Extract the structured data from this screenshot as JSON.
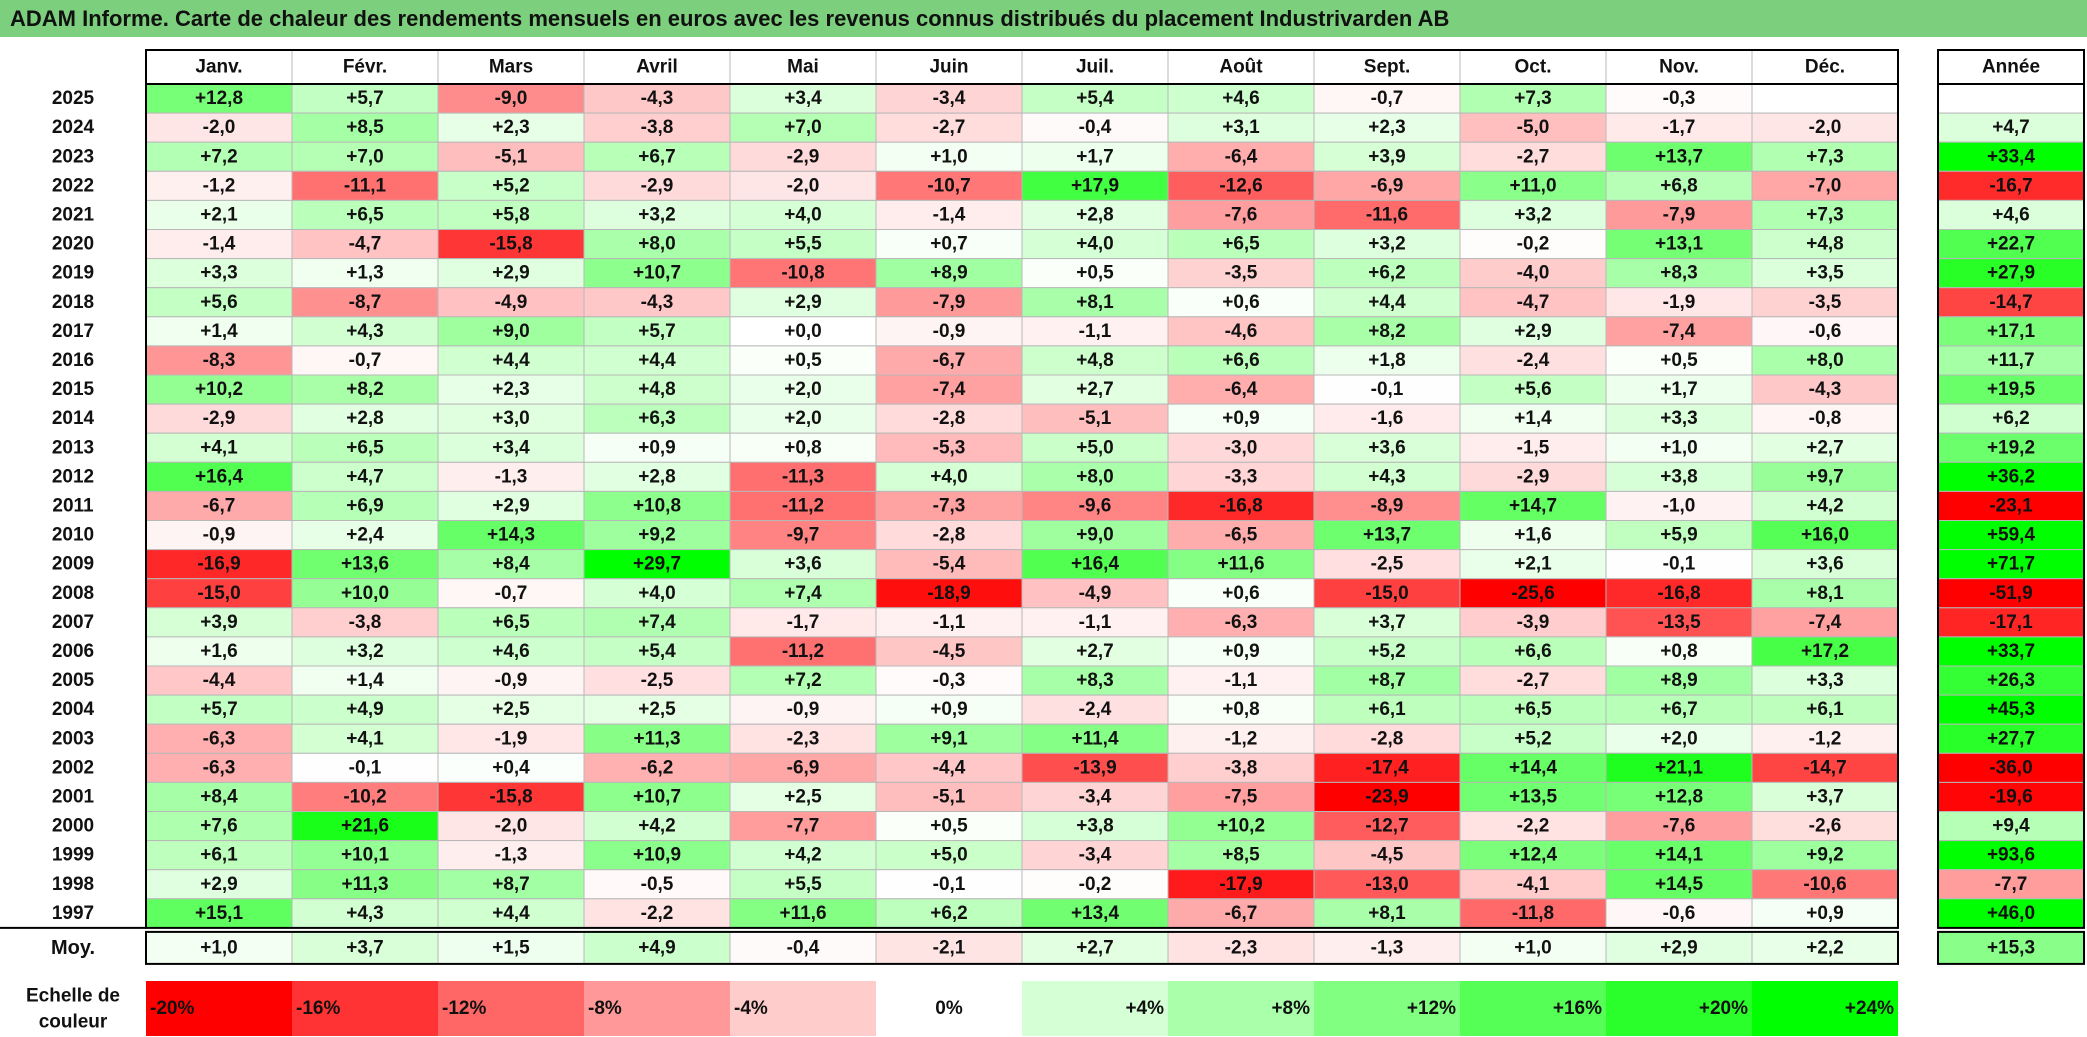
{
  "title": "ADAM Informe. Carte de chaleur des rendements mensuels en euros avec les revenus connus distribués du placement Industrivarden AB",
  "year_header": "Année",
  "avg_label": "Moy.",
  "scale_label_line1": "Echelle de",
  "scale_label_line2": "couleur",
  "colors": {
    "title_bg": "#7ccf7c",
    "neg_max": "#ff0000",
    "pos_max": "#00ff00",
    "neutral": "#ffffff",
    "grid": "#b8b8b8",
    "border": "#000000"
  },
  "chart_data": {
    "type": "heatmap",
    "columns": [
      "Janv.",
      "Févr.",
      "Mars",
      "Avril",
      "Mai",
      "Juin",
      "Juil.",
      "Août",
      "Sept.",
      "Oct.",
      "Nov.",
      "Déc."
    ],
    "rows": [
      {
        "year": "2025",
        "values": [
          "+12,8",
          "+5,7",
          "-9,0",
          "-4,3",
          "+3,4",
          "-3,4",
          "+5,4",
          "+4,6",
          "-0,7",
          "+7,3",
          "-0,3",
          ""
        ],
        "annual": ""
      },
      {
        "year": "2024",
        "values": [
          "-2,0",
          "+8,5",
          "+2,3",
          "-3,8",
          "+7,0",
          "-2,7",
          "-0,4",
          "+3,1",
          "+2,3",
          "-5,0",
          "-1,7",
          "-2,0"
        ],
        "annual": "+4,7"
      },
      {
        "year": "2023",
        "values": [
          "+7,2",
          "+7,0",
          "-5,1",
          "+6,7",
          "-2,9",
          "+1,0",
          "+1,7",
          "-6,4",
          "+3,9",
          "-2,7",
          "+13,7",
          "+7,3"
        ],
        "annual": "+33,4"
      },
      {
        "year": "2022",
        "values": [
          "-1,2",
          "-11,1",
          "+5,2",
          "-2,9",
          "-2,0",
          "-10,7",
          "+17,9",
          "-12,6",
          "-6,9",
          "+11,0",
          "+6,8",
          "-7,0"
        ],
        "annual": "-16,7"
      },
      {
        "year": "2021",
        "values": [
          "+2,1",
          "+6,5",
          "+5,8",
          "+3,2",
          "+4,0",
          "-1,4",
          "+2,8",
          "-7,6",
          "-11,6",
          "+3,2",
          "-7,9",
          "+7,3"
        ],
        "annual": "+4,6"
      },
      {
        "year": "2020",
        "values": [
          "-1,4",
          "-4,7",
          "-15,8",
          "+8,0",
          "+5,5",
          "+0,7",
          "+4,0",
          "+6,5",
          "+3,2",
          "-0,2",
          "+13,1",
          "+4,8"
        ],
        "annual": "+22,7"
      },
      {
        "year": "2019",
        "values": [
          "+3,3",
          "+1,3",
          "+2,9",
          "+10,7",
          "-10,8",
          "+8,9",
          "+0,5",
          "-3,5",
          "+6,2",
          "-4,0",
          "+8,3",
          "+3,5"
        ],
        "annual": "+27,9"
      },
      {
        "year": "2018",
        "values": [
          "+5,6",
          "-8,7",
          "-4,9",
          "-4,3",
          "+2,9",
          "-7,9",
          "+8,1",
          "+0,6",
          "+4,4",
          "-4,7",
          "-1,9",
          "-3,5"
        ],
        "annual": "-14,7"
      },
      {
        "year": "2017",
        "values": [
          "+1,4",
          "+4,3",
          "+9,0",
          "+5,7",
          "+0,0",
          "-0,9",
          "-1,1",
          "-4,6",
          "+8,2",
          "+2,9",
          "-7,4",
          "-0,6"
        ],
        "annual": "+17,1"
      },
      {
        "year": "2016",
        "values": [
          "-8,3",
          "-0,7",
          "+4,4",
          "+4,4",
          "+0,5",
          "-6,7",
          "+4,8",
          "+6,6",
          "+1,8",
          "-2,4",
          "+0,5",
          "+8,0"
        ],
        "annual": "+11,7"
      },
      {
        "year": "2015",
        "values": [
          "+10,2",
          "+8,2",
          "+2,3",
          "+4,8",
          "+2,0",
          "-7,4",
          "+2,7",
          "-6,4",
          "-0,1",
          "+5,6",
          "+1,7",
          "-4,3"
        ],
        "annual": "+19,5"
      },
      {
        "year": "2014",
        "values": [
          "-2,9",
          "+2,8",
          "+3,0",
          "+6,3",
          "+2,0",
          "-2,8",
          "-5,1",
          "+0,9",
          "-1,6",
          "+1,4",
          "+3,3",
          "-0,8"
        ],
        "annual": "+6,2"
      },
      {
        "year": "2013",
        "values": [
          "+4,1",
          "+6,5",
          "+3,4",
          "+0,9",
          "+0,8",
          "-5,3",
          "+5,0",
          "-3,0",
          "+3,6",
          "-1,5",
          "+1,0",
          "+2,7"
        ],
        "annual": "+19,2"
      },
      {
        "year": "2012",
        "values": [
          "+16,4",
          "+4,7",
          "-1,3",
          "+2,8",
          "-11,3",
          "+4,0",
          "+8,0",
          "-3,3",
          "+4,3",
          "-2,9",
          "+3,8",
          "+9,7"
        ],
        "annual": "+36,2"
      },
      {
        "year": "2011",
        "values": [
          "-6,7",
          "+6,9",
          "+2,9",
          "+10,8",
          "-11,2",
          "-7,3",
          "-9,6",
          "-16,8",
          "-8,9",
          "+14,7",
          "-1,0",
          "+4,2"
        ],
        "annual": "-23,1"
      },
      {
        "year": "2010",
        "values": [
          "-0,9",
          "+2,4",
          "+14,3",
          "+9,2",
          "-9,7",
          "-2,8",
          "+9,0",
          "-6,5",
          "+13,7",
          "+1,6",
          "+5,9",
          "+16,0"
        ],
        "annual": "+59,4"
      },
      {
        "year": "2009",
        "values": [
          "-16,9",
          "+13,6",
          "+8,4",
          "+29,7",
          "+3,6",
          "-5,4",
          "+16,4",
          "+11,6",
          "-2,5",
          "+2,1",
          "-0,1",
          "+3,6"
        ],
        "annual": "+71,7"
      },
      {
        "year": "2008",
        "values": [
          "-15,0",
          "+10,0",
          "-0,7",
          "+4,0",
          "+7,4",
          "-18,9",
          "-4,9",
          "+0,6",
          "-15,0",
          "-25,6",
          "-16,8",
          "+8,1"
        ],
        "annual": "-51,9"
      },
      {
        "year": "2007",
        "values": [
          "+3,9",
          "-3,8",
          "+6,5",
          "+7,4",
          "-1,7",
          "-1,1",
          "-1,1",
          "-6,3",
          "+3,7",
          "-3,9",
          "-13,5",
          "-7,4"
        ],
        "annual": "-17,1"
      },
      {
        "year": "2006",
        "values": [
          "+1,6",
          "+3,2",
          "+4,6",
          "+5,4",
          "-11,2",
          "-4,5",
          "+2,7",
          "+0,9",
          "+5,2",
          "+6,6",
          "+0,8",
          "+17,2"
        ],
        "annual": "+33,7"
      },
      {
        "year": "2005",
        "values": [
          "-4,4",
          "+1,4",
          "-0,9",
          "-2,5",
          "+7,2",
          "-0,3",
          "+8,3",
          "-1,1",
          "+8,7",
          "-2,7",
          "+8,9",
          "+3,3"
        ],
        "annual": "+26,3"
      },
      {
        "year": "2004",
        "values": [
          "+5,7",
          "+4,9",
          "+2,5",
          "+2,5",
          "-0,9",
          "+0,9",
          "-2,4",
          "+0,8",
          "+6,1",
          "+6,5",
          "+6,7",
          "+6,1"
        ],
        "annual": "+45,3"
      },
      {
        "year": "2003",
        "values": [
          "-6,3",
          "+4,1",
          "-1,9",
          "+11,3",
          "-2,3",
          "+9,1",
          "+11,4",
          "-1,2",
          "-2,8",
          "+5,2",
          "+2,0",
          "-1,2"
        ],
        "annual": "+27,7"
      },
      {
        "year": "2002",
        "values": [
          "-6,3",
          "-0,1",
          "+0,4",
          "-6,2",
          "-6,9",
          "-4,4",
          "-13,9",
          "-3,8",
          "-17,4",
          "+14,4",
          "+21,1",
          "-14,7"
        ],
        "annual": "-36,0"
      },
      {
        "year": "2001",
        "values": [
          "+8,4",
          "-10,2",
          "-15,8",
          "+10,7",
          "+2,5",
          "-5,1",
          "-3,4",
          "-7,5",
          "-23,9",
          "+13,5",
          "+12,8",
          "+3,7"
        ],
        "annual": "-19,6"
      },
      {
        "year": "2000",
        "values": [
          "+7,6",
          "+21,6",
          "-2,0",
          "+4,2",
          "-7,7",
          "+0,5",
          "+3,8",
          "+10,2",
          "-12,7",
          "-2,2",
          "-7,6",
          "-2,6"
        ],
        "annual": "+9,4"
      },
      {
        "year": "1999",
        "values": [
          "+6,1",
          "+10,1",
          "-1,3",
          "+10,9",
          "+4,2",
          "+5,0",
          "-3,4",
          "+8,5",
          "-4,5",
          "+12,4",
          "+14,1",
          "+9,2"
        ],
        "annual": "+93,6"
      },
      {
        "year": "1998",
        "values": [
          "+2,9",
          "+11,3",
          "+8,7",
          "-0,5",
          "+5,5",
          "-0,1",
          "-0,2",
          "-17,9",
          "-13,0",
          "-4,1",
          "+14,5",
          "-10,6"
        ],
        "annual": "-7,7"
      },
      {
        "year": "1997",
        "values": [
          "+15,1",
          "+4,3",
          "+4,4",
          "-2,2",
          "+11,6",
          "+6,2",
          "+13,4",
          "-6,7",
          "+8,1",
          "-11,8",
          "-0,6",
          "+0,9"
        ],
        "annual": "+46,0"
      }
    ],
    "averages": [
      "+1,0",
      "+3,7",
      "+1,5",
      "+4,9",
      "-0,4",
      "-2,1",
      "+2,7",
      "-2,3",
      "-1,3",
      "+1,0",
      "+2,9",
      "+2,2"
    ],
    "average_annual": "+15,3",
    "scale": [
      {
        "label": "-20%",
        "value": -20
      },
      {
        "label": "-16%",
        "value": -16
      },
      {
        "label": "-12%",
        "value": -12
      },
      {
        "label": "-8%",
        "value": -8
      },
      {
        "label": "-4%",
        "value": -4
      },
      {
        "label": "0%",
        "value": 0
      },
      {
        "label": "+4%",
        "value": 4
      },
      {
        "label": "+8%",
        "value": 8
      },
      {
        "label": "+12%",
        "value": 12
      },
      {
        "label": "+16%",
        "value": 16
      },
      {
        "label": "+20%",
        "value": 20
      },
      {
        "label": "+24%",
        "value": 24
      }
    ]
  }
}
